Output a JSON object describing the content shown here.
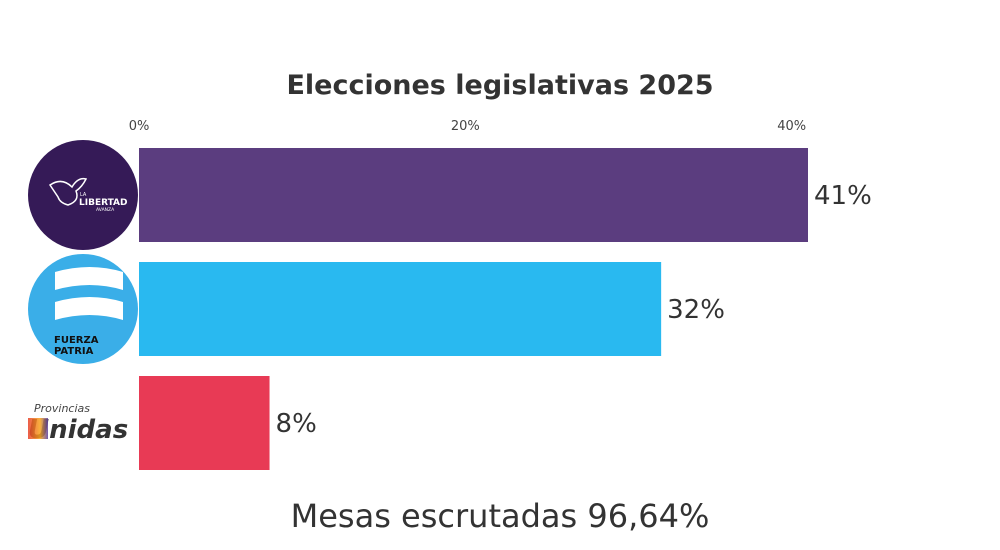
{
  "chart_data": {
    "type": "bar",
    "orientation": "horizontal",
    "title": "Elecciones legislativas 2025",
    "categories": [
      "La Libertad Avanza",
      "Fuerza Patria",
      "Provincias Unidas"
    ],
    "values": [
      41,
      32,
      8
    ],
    "value_labels": [
      "41%",
      "32%",
      "8%"
    ],
    "colors": [
      "#5b3d7f",
      "#29b9f0",
      "#e83a55"
    ],
    "xticks": [
      0,
      20,
      40
    ],
    "xtick_labels": [
      "0%",
      "20%",
      "40%"
    ],
    "xlim": [
      0,
      41
    ],
    "grid": false,
    "axis_position": "top",
    "category_display": "logos",
    "logos": [
      {
        "text": [
          "LA",
          "LIBERTAD",
          "AVANZA"
        ],
        "bg": "#351a57"
      },
      {
        "text": [
          "FUERZA",
          "PATRIA"
        ],
        "bg": "#3aaee8"
      },
      {
        "text": [
          "Provincias",
          "Unidas"
        ]
      }
    ]
  },
  "footer": "Mesas escrutadas 96,64%"
}
